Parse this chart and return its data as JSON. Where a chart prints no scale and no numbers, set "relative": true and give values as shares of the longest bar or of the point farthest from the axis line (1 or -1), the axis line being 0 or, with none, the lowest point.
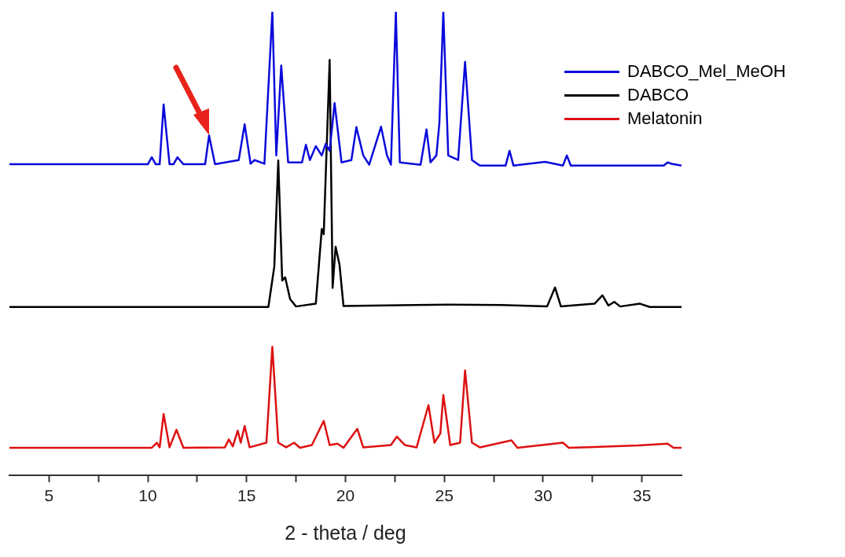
{
  "chart_data": {
    "type": "line",
    "xlabel": "2 - theta / deg",
    "relative": true,
    "xlim": [
      3,
      37
    ],
    "xticks": [
      5,
      {
        "value": 7.5,
        "label": null
      },
      10,
      {
        "value": 12.5,
        "label": null
      },
      15,
      {
        "value": 17.5,
        "label": null
      },
      20,
      {
        "value": 22.5,
        "label": null
      },
      25,
      {
        "value": 27.5,
        "label": null
      },
      30,
      {
        "value": 32.5,
        "label": null
      },
      35
    ],
    "grid": false,
    "legend": "top right",
    "marker": "none",
    "line_style": "solid",
    "series": [
      {
        "name": "DABCO_Mel_MeOH",
        "color": "#0a0adc",
        "x": [
          3,
          10,
          10.2,
          10.4,
          10.6,
          10.8,
          11.1,
          11.3,
          11.5,
          11.8,
          12.9,
          13.1,
          13.4,
          14.6,
          14.9,
          15.2,
          15.4,
          15.9,
          16.3,
          16.5,
          16.75,
          17.1,
          17.8,
          18,
          18.2,
          18.5,
          18.8,
          19,
          19.2,
          19.45,
          19.8,
          20.3,
          20.55,
          20.9,
          21.2,
          21.8,
          22.1,
          22.3,
          22.55,
          22.75,
          23.8,
          24.1,
          24.3,
          24.6,
          24.75,
          24.95,
          25.2,
          25.7,
          26.05,
          26.4,
          26.8,
          28.1,
          28.3,
          28.5,
          30.1,
          31,
          31.2,
          31.4,
          36.1,
          36.3,
          36.5,
          37
        ],
        "values": [
          0.671,
          0.671,
          0.686,
          0.671,
          0.671,
          0.8,
          0.671,
          0.671,
          0.686,
          0.671,
          0.671,
          0.733,
          0.671,
          0.68,
          0.757,
          0.672,
          0.68,
          0.672,
          1,
          0.69,
          0.884,
          0.675,
          0.675,
          0.713,
          0.68,
          0.71,
          0.69,
          0.715,
          0.7,
          0.803,
          0.675,
          0.68,
          0.751,
          0.69,
          0.67,
          0.752,
          0.69,
          0.67,
          1,
          0.675,
          0.67,
          0.746,
          0.675,
          0.69,
          0.759,
          1,
          0.69,
          0.68,
          0.892,
          0.68,
          0.668,
          0.668,
          0.7,
          0.668,
          0.676,
          0.668,
          0.69,
          0.668,
          0.668,
          0.675,
          0.672,
          0.668
        ]
      },
      {
        "name": "DABCO",
        "color": "#000000",
        "x": [
          3,
          16.1,
          16.4,
          16.6,
          16.8,
          16.95,
          17.2,
          17.5,
          18.5,
          18.8,
          18.9,
          19.2,
          19.35,
          19.5,
          19.7,
          19.9,
          25.2,
          27.9,
          30.2,
          30.6,
          30.9,
          32.6,
          33,
          33.3,
          33.6,
          33.9,
          34.9,
          35.4,
          37
        ],
        "values": [
          0.363,
          0.363,
          0.45,
          0.679,
          0.42,
          0.427,
          0.38,
          0.364,
          0.37,
          0.531,
          0.52,
          0.896,
          0.404,
          0.493,
          0.454,
          0.365,
          0.368,
          0.367,
          0.364,
          0.405,
          0.364,
          0.37,
          0.388,
          0.366,
          0.374,
          0.364,
          0.37,
          0.363,
          0.363
        ]
      },
      {
        "name": "Melatonin",
        "color": "#dd1111",
        "x": [
          3,
          10.2,
          10.45,
          10.6,
          10.8,
          11.1,
          11.45,
          11.8,
          13.9,
          14.1,
          14.3,
          14.55,
          14.7,
          14.9,
          15.15,
          16,
          16.3,
          16.6,
          17,
          17.4,
          17.7,
          18.3,
          18.9,
          19.2,
          19.6,
          19.9,
          20.6,
          20.9,
          22.3,
          22.6,
          23,
          23.6,
          24.2,
          24.5,
          24.8,
          24.95,
          25.3,
          25.8,
          26.05,
          26.4,
          26.8,
          28.4,
          28.7,
          31,
          31.3,
          34.8,
          36.3,
          36.6,
          37
        ],
        "values": [
          0.059,
          0.059,
          0.07,
          0.06,
          0.132,
          0.06,
          0.098,
          0.059,
          0.06,
          0.077,
          0.062,
          0.096,
          0.07,
          0.106,
          0.06,
          0.07,
          0.277,
          0.07,
          0.06,
          0.07,
          0.059,
          0.065,
          0.117,
          0.065,
          0.068,
          0.059,
          0.1,
          0.06,
          0.065,
          0.083,
          0.065,
          0.06,
          0.151,
          0.07,
          0.09,
          0.173,
          0.065,
          0.07,
          0.226,
          0.07,
          0.06,
          0.075,
          0.059,
          0.07,
          0.059,
          0.064,
          0.068,
          0.059,
          0.059
        ]
      }
    ]
  }
}
